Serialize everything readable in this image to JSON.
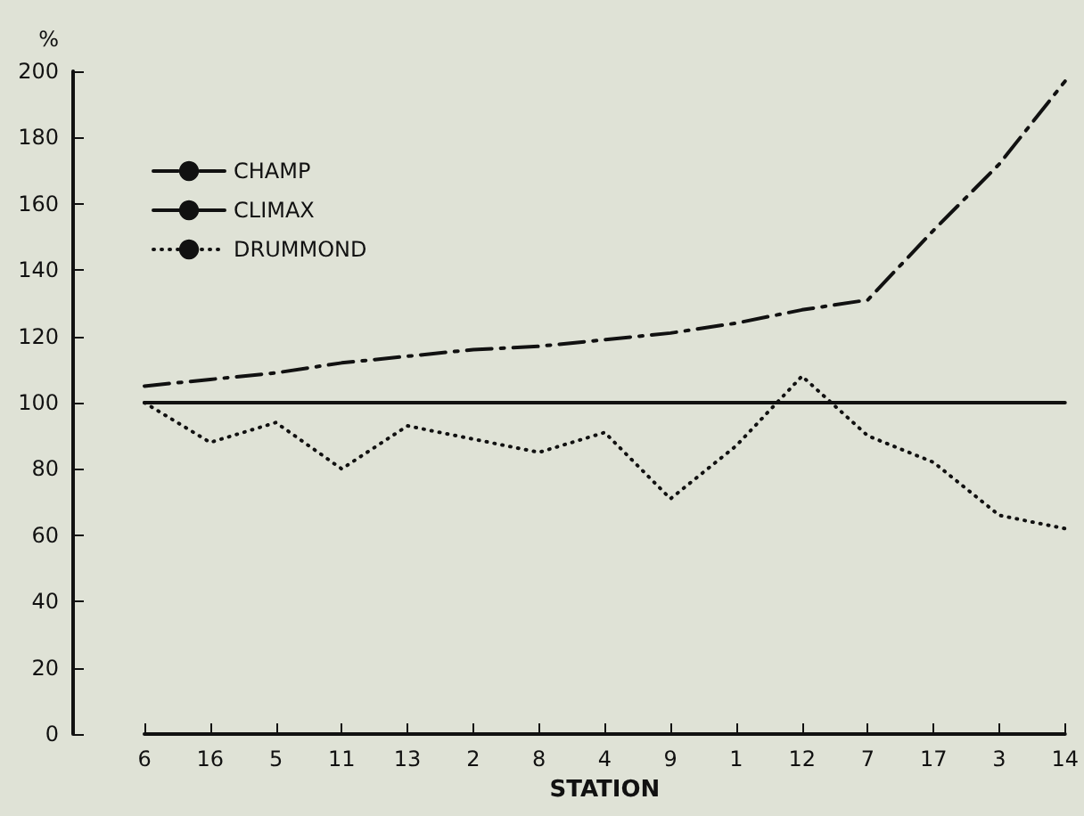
{
  "chart_data": {
    "type": "line",
    "xlabel": "STATION",
    "ylabel": "%",
    "categories": [
      "6",
      "16",
      "5",
      "11",
      "13",
      "2",
      "8",
      "4",
      "9",
      "1",
      "12",
      "7",
      "17",
      "3",
      "14"
    ],
    "series": [
      {
        "name": "CHAMP",
        "color": "#111111",
        "line_style": "dashed",
        "values": [
          105,
          107,
          109,
          112,
          114,
          116,
          117,
          119,
          121,
          124,
          128,
          131,
          152,
          172,
          197
        ]
      },
      {
        "name": "CLIMAX",
        "color": "#111111",
        "line_style": "solid",
        "values": [
          100,
          100,
          100,
          100,
          100,
          100,
          100,
          100,
          100,
          100,
          100,
          100,
          100,
          100,
          100
        ]
      },
      {
        "name": "DRUMMOND",
        "color": "#111111",
        "line_style": "dotted",
        "values": [
          100,
          88,
          94,
          80,
          93,
          89,
          85,
          91,
          71,
          87,
          108,
          90,
          82,
          66,
          62
        ]
      }
    ],
    "ylim": [
      0,
      200
    ],
    "yticks": [
      0,
      20,
      40,
      60,
      80,
      100,
      120,
      140,
      160,
      180,
      200
    ],
    "grid": false,
    "legend": "top left",
    "marker": "none"
  }
}
